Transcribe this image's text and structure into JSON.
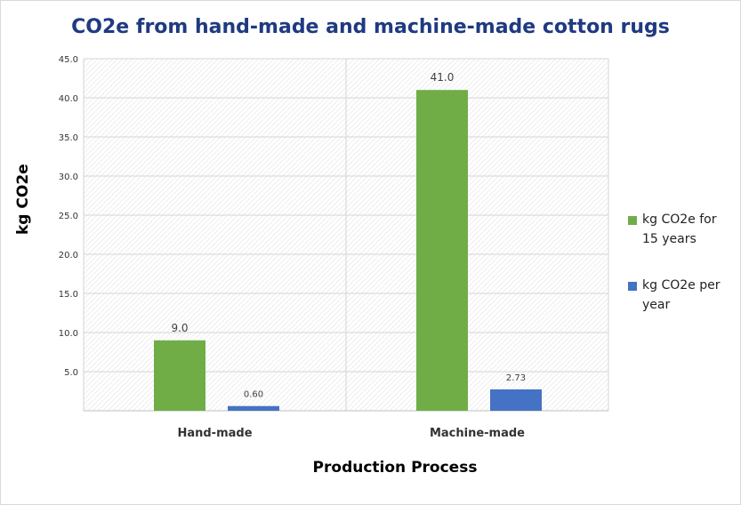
{
  "chart_data": {
    "type": "bar",
    "title": "CO2e from hand-made and machine-made cotton rugs",
    "xlabel": "Production Process",
    "ylabel": "kg CO2e",
    "categories": [
      "Hand-made",
      "Machine-made"
    ],
    "series": [
      {
        "name": "kg CO2e for 15 years",
        "values": [
          9.0,
          41.0
        ],
        "labels": [
          "9.0",
          "41.0"
        ],
        "color": "#70ad47"
      },
      {
        "name": "kg CO2e per year",
        "values": [
          0.6,
          2.73
        ],
        "labels": [
          "0.60",
          "2.73"
        ],
        "color": "#4472c4"
      }
    ],
    "ylim": [
      0,
      45
    ],
    "yticks": [
      "5.0",
      "10.0",
      "15.0",
      "20.0",
      "25.0",
      "30.0",
      "35.0",
      "40.0",
      "45.0"
    ],
    "grid": true,
    "legend_position": "right"
  }
}
